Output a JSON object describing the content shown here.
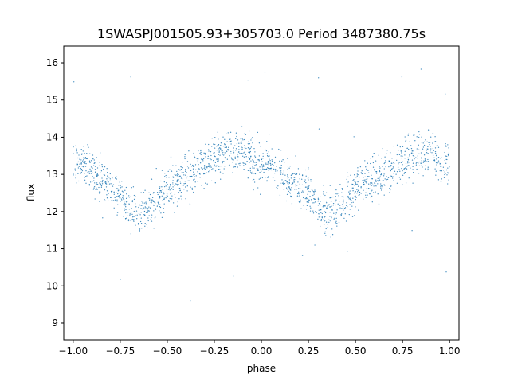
{
  "chart_data": {
    "type": "scatter",
    "title": "1SWASPJ001505.93+305703.0 Period 3487380.75s",
    "xlabel": "phase",
    "ylabel": "flux",
    "xlim": [
      -1.05,
      1.05
    ],
    "ylim": [
      8.55,
      16.45
    ],
    "xticks": [
      -1.0,
      -0.75,
      -0.5,
      -0.25,
      0.0,
      0.25,
      0.5,
      0.75,
      1.0
    ],
    "xtick_labels": [
      "−1.00",
      "−0.75",
      "−0.50",
      "−0.25",
      "0.00",
      "0.25",
      "0.50",
      "0.75",
      "1.00"
    ],
    "yticks": [
      9,
      10,
      11,
      12,
      13,
      14,
      15,
      16
    ],
    "ytick_labels": [
      "9",
      "10",
      "11",
      "12",
      "13",
      "14",
      "15",
      "16"
    ],
    "grid": false,
    "legend": "none",
    "marker_color": "#1f77b4",
    "series": [
      {
        "description": "phase-folded light curve; mean flux profile (sampled), points scattered ~±0.45 around it, pattern repeats with period 1 in phase",
        "x": [
          -1.0,
          -0.95,
          -0.9,
          -0.85,
          -0.8,
          -0.75,
          -0.7,
          -0.65,
          -0.6,
          -0.55,
          -0.5,
          -0.45,
          -0.4,
          -0.35,
          -0.3,
          -0.25,
          -0.2,
          -0.15,
          -0.1,
          -0.05,
          0.0,
          0.05,
          0.1,
          0.15,
          0.2,
          0.25,
          0.3,
          0.35,
          0.4,
          0.45,
          0.5,
          0.55,
          0.6,
          0.65,
          0.7,
          0.75,
          0.8,
          0.85,
          0.9,
          0.95,
          1.0
        ],
        "y": [
          13.2,
          13.3,
          13.0,
          12.8,
          12.7,
          12.5,
          12.1,
          11.9,
          12.1,
          12.4,
          12.6,
          12.8,
          12.9,
          13.1,
          13.2,
          13.4,
          13.6,
          13.5,
          13.7,
          13.3,
          13.2,
          13.3,
          13.0,
          12.8,
          12.7,
          12.5,
          12.1,
          11.9,
          12.1,
          12.4,
          12.6,
          12.8,
          12.9,
          13.1,
          13.2,
          13.4,
          13.6,
          13.5,
          13.7,
          13.3,
          13.2
        ]
      }
    ]
  }
}
